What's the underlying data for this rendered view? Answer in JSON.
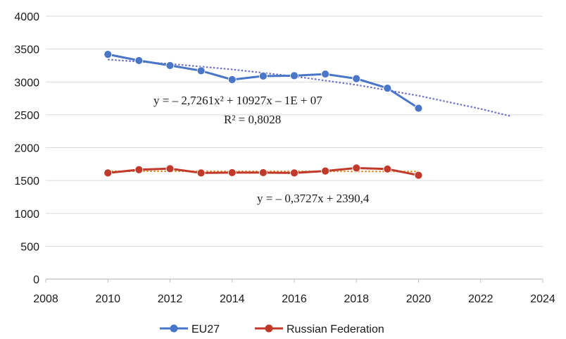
{
  "chart_data": {
    "type": "line",
    "title": "",
    "xlabel": "",
    "ylabel": "",
    "xlim": [
      2008,
      2024
    ],
    "ylim": [
      0,
      4000
    ],
    "xticks": [
      2008,
      2010,
      2012,
      2014,
      2016,
      2018,
      2020,
      2022,
      2024
    ],
    "yticks": [
      0,
      500,
      1000,
      1500,
      2000,
      2500,
      3000,
      3500,
      4000
    ],
    "grid": "horizontal",
    "legend_position": "bottom",
    "x": [
      2010,
      2011,
      2012,
      2013,
      2014,
      2015,
      2016,
      2017,
      2018,
      2019,
      2020
    ],
    "series": [
      {
        "name": "EU27",
        "color": "#4a76c8",
        "values": [
          3420,
          3325,
          3250,
          3170,
          3035,
          3090,
          3095,
          3120,
          3050,
          2905,
          2600
        ]
      },
      {
        "name": "Russian Federation",
        "color": "#c0392b",
        "values": [
          1615,
          1665,
          1680,
          1615,
          1620,
          1620,
          1615,
          1645,
          1690,
          1675,
          1580
        ]
      }
    ],
    "trendlines": [
      {
        "series": "EU27",
        "kind": "polynomial-2",
        "color": "#6f6fc8",
        "x_range": [
          2010,
          2023
        ],
        "points": [
          [
            2010,
            3340
          ],
          [
            2012,
            3275
          ],
          [
            2014,
            3190
          ],
          [
            2016,
            3085
          ],
          [
            2018,
            2955
          ],
          [
            2020,
            2790
          ],
          [
            2022,
            2590
          ],
          [
            2023,
            2475
          ]
        ]
      },
      {
        "series": "Russian Federation",
        "kind": "linear",
        "color": "#e08a2a",
        "x_range": [
          2010,
          2020
        ],
        "points": [
          [
            2010,
            1642
          ],
          [
            2020,
            1638
          ]
        ]
      }
    ],
    "annotations": [
      {
        "text": "y = – 2,7261x² + 10927x – 1E + 07"
      },
      {
        "text": "R² = 0,8028"
      },
      {
        "text": "y = – 0,3727x + 2390,4"
      }
    ]
  }
}
